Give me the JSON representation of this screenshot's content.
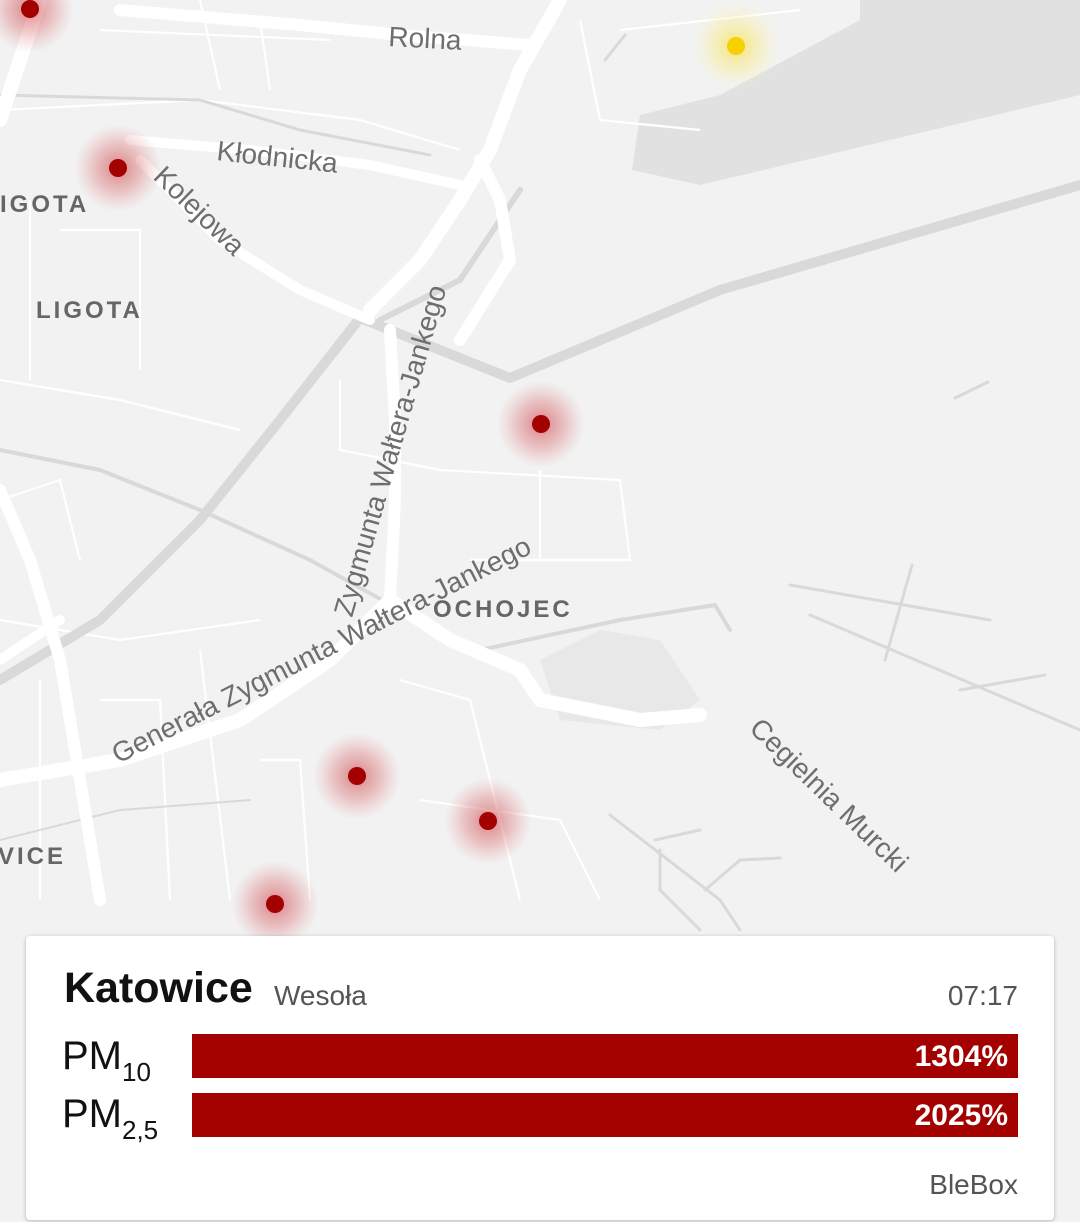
{
  "map": {
    "street_labels": {
      "rolna": "Rolna",
      "klodnicka": "Kłodnicka",
      "kolejowa": "Kolejowa",
      "waltera": "Zygmunta Wałtera-Jankego",
      "generala": "Generała Zygmunta Wałtera-Jankego",
      "cegielnia": "Cegielnia Murcki"
    },
    "district_labels": {
      "ligota_top": "IGOTA",
      "ligota": "LIGOTA",
      "ochojec": "OCHOJEC",
      "wice": "VICE"
    },
    "marker_colors": {
      "red": "#a30000",
      "yellow": "#f7d000"
    }
  },
  "card": {
    "city": "Katowice",
    "district": "Wesoła",
    "time": "07:17",
    "pm10": {
      "label": "PM",
      "sub": "10",
      "value_text": "1304%"
    },
    "pm25": {
      "label": "PM",
      "sub": "2,5",
      "value_text": "2025%"
    },
    "bar_color": "#a30000",
    "source": "BleBox"
  }
}
